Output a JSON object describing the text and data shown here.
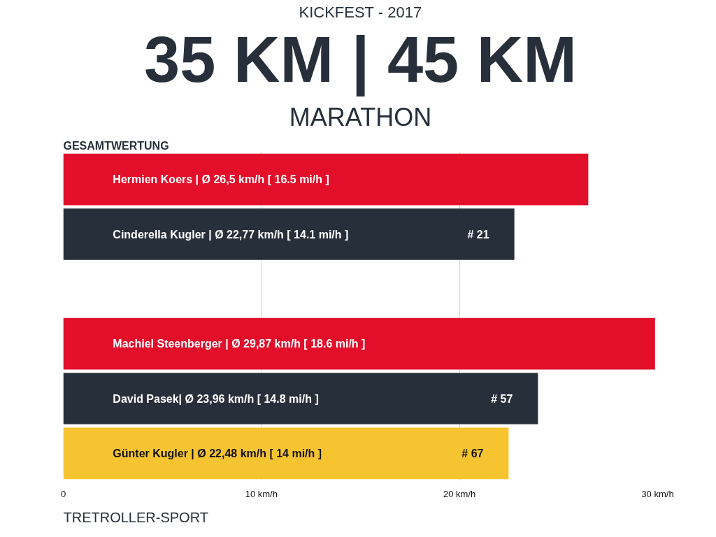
{
  "chart_data": {
    "type": "bar",
    "orientation": "horizontal",
    "subtitle": "KICKFEST - 2017",
    "title": "35 KM | 45 KM",
    "annotations": [
      "MARATHON",
      "GESAMTWERTUNG",
      "TRETROLLER-SPORT",
      {
        "text": "# 21",
        "y": "Cinderella Kugler | Ø 22,77 km/h [ 14.1 mi/h ]"
      },
      {
        "text": "# 57",
        "y": "David Pasek| Ø 23,96 km/h [ 14.8 mi/h ]"
      },
      {
        "text": "# 67",
        "y": "Günter Kugler | Ø 22,48 km/h [ 14 mi/h ]"
      }
    ],
    "categories": [
      "Hermien Koers | Ø 26,5 km/h [ 16.5 mi/h ]",
      "Cinderella Kugler | Ø 22,77 km/h [ 14.1 mi/h ]",
      null,
      "Machiel Steenberger | Ø 29,87 km/h [ 18.6 mi/h ]",
      "David Pasek| Ø 23,96 km/h [ 14.8 mi/h ]",
      "Günter Kugler | Ø 22,48 km/h [ 14 mi/h ]"
    ],
    "values": [
      26.5,
      22.77,
      null,
      29.87,
      23.96,
      22.48
    ],
    "colors": [
      "#e20e2a",
      "#27303a",
      "#27303a",
      "#e20e2a",
      "#27303a",
      "#f7c431"
    ],
    "xlim": [
      0,
      30
    ],
    "xticks": [
      0,
      {
        "value": 10,
        "label": "10 km/h"
      },
      {
        "value": 20,
        "label": "20 km/h"
      },
      {
        "value": 30,
        "label": "30 km/h"
      }
    ],
    "grid": "x",
    "tick_labels": "x"
  }
}
